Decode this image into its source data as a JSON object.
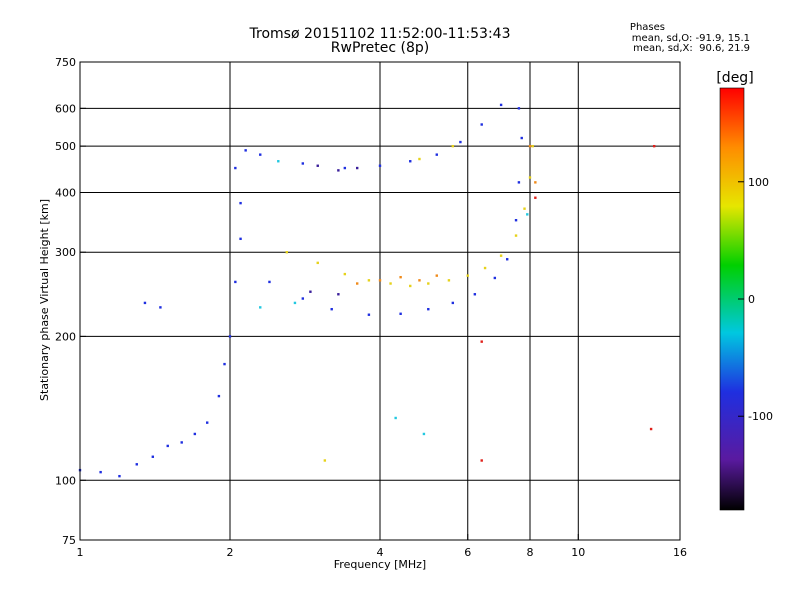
{
  "chart_data": {
    "type": "scatter",
    "title": "Tromsø 20151102 11:52:00-11:53:43",
    "subtitle": "RwPretec (8p)",
    "stats": {
      "heading": "Phases",
      "line1": "mean, sd,O: -91.9, 15.1",
      "line2": "mean, sd,X:  90.6, 21.9"
    },
    "xlabel": "Frequency [MHz]",
    "ylabel": "Stationary phase Virtual Height [km]",
    "xscale": "log",
    "yscale": "log",
    "xlim": [
      1,
      16
    ],
    "ylim": [
      75,
      750
    ],
    "xticks": [
      1,
      2,
      4,
      6,
      8,
      10,
      16
    ],
    "yticks": [
      75,
      100,
      200,
      300,
      400,
      500,
      600,
      750
    ],
    "xgrid": [
      2,
      4,
      6,
      8,
      10
    ],
    "ygrid": [
      100,
      200,
      300,
      400,
      500,
      600
    ],
    "colorbar": {
      "label": "[deg]",
      "ticks": [
        100,
        0,
        -100
      ],
      "range": [
        -180,
        180
      ]
    },
    "series": [
      {
        "color": "#1f2fe0",
        "points": [
          [
            1.0,
            105
          ],
          [
            1.1,
            104
          ],
          [
            1.2,
            102
          ],
          [
            1.3,
            108
          ],
          [
            1.4,
            112
          ],
          [
            1.5,
            118
          ],
          [
            1.6,
            120
          ],
          [
            1.7,
            125
          ],
          [
            1.8,
            132
          ],
          [
            1.9,
            150
          ],
          [
            1.95,
            175
          ],
          [
            2.0,
            200
          ],
          [
            2.05,
            260
          ],
          [
            2.1,
            320
          ],
          [
            2.1,
            380
          ],
          [
            2.05,
            450
          ],
          [
            2.15,
            490
          ],
          [
            2.4,
            260
          ],
          [
            2.8,
            240
          ],
          [
            3.2,
            228
          ],
          [
            3.8,
            222
          ],
          [
            4.4,
            223
          ],
          [
            5.0,
            228
          ],
          [
            5.6,
            235
          ],
          [
            6.2,
            245
          ],
          [
            6.8,
            265
          ],
          [
            7.2,
            290
          ],
          [
            7.5,
            350
          ],
          [
            7.6,
            420
          ],
          [
            7.7,
            520
          ],
          [
            7.6,
            600
          ],
          [
            2.3,
            480
          ],
          [
            2.8,
            460
          ],
          [
            3.4,
            450
          ],
          [
            4.0,
            455
          ],
          [
            4.6,
            465
          ],
          [
            5.2,
            480
          ],
          [
            5.8,
            510
          ],
          [
            6.4,
            555
          ],
          [
            7.0,
            610
          ],
          [
            1.35,
            235
          ],
          [
            1.45,
            230
          ]
        ]
      },
      {
        "color": "#e6d21a",
        "points": [
          [
            2.6,
            300
          ],
          [
            3.0,
            285
          ],
          [
            3.4,
            270
          ],
          [
            3.8,
            262
          ],
          [
            4.2,
            258
          ],
          [
            4.6,
            255
          ],
          [
            5.0,
            258
          ],
          [
            5.5,
            262
          ],
          [
            6.0,
            268
          ],
          [
            6.5,
            278
          ],
          [
            7.0,
            295
          ],
          [
            7.5,
            325
          ],
          [
            7.8,
            370
          ],
          [
            8.0,
            430
          ],
          [
            8.1,
            500
          ],
          [
            3.1,
            110
          ],
          [
            4.8,
            470
          ],
          [
            5.6,
            500
          ]
        ]
      },
      {
        "color": "#f08a1a",
        "points": [
          [
            3.6,
            258
          ],
          [
            4.0,
            262
          ],
          [
            4.4,
            266
          ],
          [
            4.8,
            262
          ],
          [
            5.2,
            268
          ],
          [
            8.2,
            420
          ],
          [
            8.0,
            500
          ]
        ]
      },
      {
        "color": "#3a1f9a",
        "points": [
          [
            2.9,
            248
          ],
          [
            3.3,
            245
          ],
          [
            3.0,
            455
          ],
          [
            3.3,
            445
          ],
          [
            3.6,
            450
          ]
        ]
      },
      {
        "color": "#22c8e0",
        "points": [
          [
            2.3,
            230
          ],
          [
            2.7,
            235
          ],
          [
            2.5,
            465
          ],
          [
            4.3,
            135
          ],
          [
            4.9,
            125
          ],
          [
            7.9,
            360
          ]
        ]
      },
      {
        "color": "#e0201a",
        "points": [
          [
            6.4,
            195
          ],
          [
            6.4,
            110
          ],
          [
            8.2,
            390
          ],
          [
            14.0,
            128
          ],
          [
            14.2,
            500
          ]
        ]
      }
    ]
  }
}
